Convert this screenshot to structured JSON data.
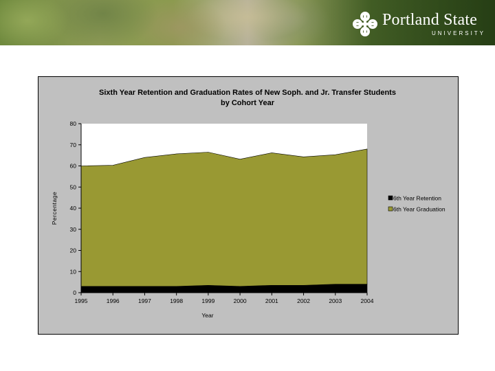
{
  "header": {
    "logo_name": "Portland State",
    "logo_sub": "UNIVERSITY"
  },
  "chart_data": {
    "type": "area",
    "stacked": true,
    "title": "Sixth Year Retention and Graduation Rates of New Soph. and Jr. Transfer Students",
    "subtitle": "by Cohort Year",
    "xlabel": "Year",
    "ylabel": "Percentage",
    "x": [
      "1995",
      "1996",
      "1997",
      "1998",
      "1999",
      "2000",
      "2001",
      "2002",
      "2003",
      "2004"
    ],
    "ylim": [
      0,
      80
    ],
    "yticks": [
      0,
      10,
      20,
      30,
      40,
      50,
      60,
      70,
      80
    ],
    "grid": false,
    "legend_position": "right",
    "series": [
      {
        "name": "6th Year Retention",
        "color": "#000000",
        "values": [
          3,
          3,
          3,
          3,
          3.5,
          3,
          3.5,
          3.5,
          4,
          4
        ]
      },
      {
        "name": "6th Year Graduation",
        "color": "#999933",
        "values": [
          57,
          57.3,
          61,
          62.7,
          63,
          60.2,
          62.7,
          60.8,
          61.3,
          64
        ]
      }
    ],
    "colors": {
      "plot_background": "#ffffff",
      "panel_background": "#c0c0c0"
    }
  }
}
